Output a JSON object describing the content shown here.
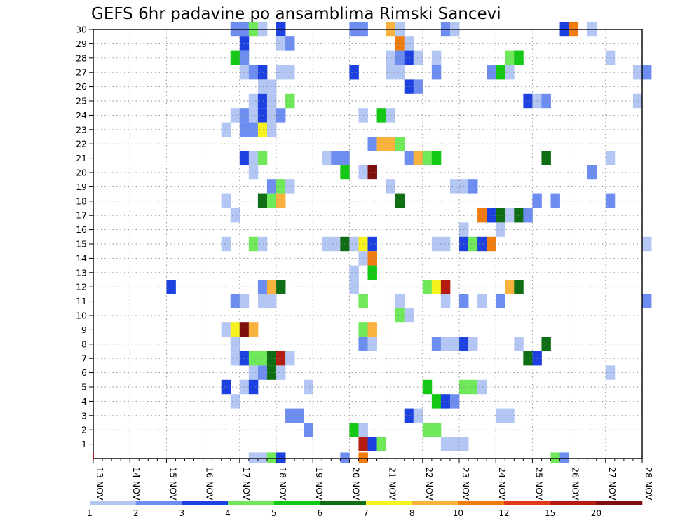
{
  "chart_data": {
    "type": "heatmap",
    "title": "GEFS 6hr padavine po ansamblima Rimski Sancevi",
    "xlabel": "",
    "ylabel": "",
    "x_ticks": [
      "13 NOV",
      "14 NOV",
      "15 NOV",
      "16 NOV",
      "17 NOV",
      "18 NOV",
      "19 NOV",
      "20 NOV",
      "21 NOV",
      "22 NOV",
      "23 NOV",
      "24 NOV",
      "25 NOV",
      "26 NOV",
      "27 NOV",
      "28 NOV"
    ],
    "y_ticks": [
      "1",
      "2",
      "3",
      "4",
      "5",
      "6",
      "7",
      "8",
      "9",
      "10",
      "11",
      "12",
      "13",
      "14",
      "15",
      "16",
      "17",
      "18",
      "19",
      "20",
      "21",
      "22",
      "23",
      "24",
      "25",
      "26",
      "27",
      "28",
      "29",
      "30"
    ],
    "xlim": [
      "13 NOV",
      "28 NOV"
    ],
    "x_step": "6hr",
    "ylim": [
      0,
      30
    ],
    "grid": true,
    "colorbar": {
      "labels": [
        "1",
        "2",
        "3",
        "4",
        "5",
        "6",
        "7",
        "8",
        "10",
        "12",
        "15",
        "20"
      ],
      "colors": [
        "#b4c6f4",
        "#6d8ef0",
        "#1c41e0",
        "#6fe85a",
        "#14c914",
        "#0f6e14",
        "#f5f21e",
        "#f9b23d",
        "#f07c10",
        "#e03a14",
        "#b51c10",
        "#7d0f0f"
      ]
    },
    "cells": [
      {
        "member": 30,
        "day": 16.75,
        "value": 2
      },
      {
        "member": 30,
        "day": 17.0,
        "value": 2
      },
      {
        "member": 30,
        "day": 17.25,
        "value": 4
      },
      {
        "member": 30,
        "day": 17.5,
        "value": 1
      },
      {
        "member": 30,
        "day": 18.0,
        "value": 3
      },
      {
        "member": 30,
        "day": 20.0,
        "value": 2
      },
      {
        "member": 30,
        "day": 20.25,
        "value": 2
      },
      {
        "member": 30,
        "day": 21.0,
        "value": 8
      },
      {
        "member": 30,
        "day": 21.25,
        "value": 1
      },
      {
        "member": 30,
        "day": 22.5,
        "value": 2
      },
      {
        "member": 30,
        "day": 22.75,
        "value": 1
      },
      {
        "member": 30,
        "day": 25.75,
        "value": 3
      },
      {
        "member": 30,
        "day": 26.0,
        "value": 10
      },
      {
        "member": 30,
        "day": 26.5,
        "value": 1
      },
      {
        "member": 29,
        "day": 17.0,
        "value": 3
      },
      {
        "member": 29,
        "day": 18.0,
        "value": 1
      },
      {
        "member": 29,
        "day": 18.25,
        "value": 2
      },
      {
        "member": 29,
        "day": 21.25,
        "value": 10
      },
      {
        "member": 29,
        "day": 21.5,
        "value": 1
      },
      {
        "member": 28,
        "day": 16.75,
        "value": 5
      },
      {
        "member": 28,
        "day": 17.0,
        "value": 2
      },
      {
        "member": 28,
        "day": 21.0,
        "value": 1
      },
      {
        "member": 28,
        "day": 21.25,
        "value": 2
      },
      {
        "member": 28,
        "day": 21.5,
        "value": 3
      },
      {
        "member": 28,
        "day": 21.75,
        "value": 1
      },
      {
        "member": 28,
        "day": 22.25,
        "value": 1
      },
      {
        "member": 28,
        "day": 24.25,
        "value": 4
      },
      {
        "member": 28,
        "day": 24.5,
        "value": 5
      },
      {
        "member": 28,
        "day": 27.0,
        "value": 1
      },
      {
        "member": 27,
        "day": 17.0,
        "value": 1
      },
      {
        "member": 27,
        "day": 17.25,
        "value": 2
      },
      {
        "member": 27,
        "day": 17.5,
        "value": 3
      },
      {
        "member": 27,
        "day": 18.0,
        "value": 1
      },
      {
        "member": 27,
        "day": 18.25,
        "value": 1
      },
      {
        "member": 27,
        "day": 20.0,
        "value": 3
      },
      {
        "member": 27,
        "day": 21.0,
        "value": 1
      },
      {
        "member": 27,
        "day": 21.25,
        "value": 1
      },
      {
        "member": 27,
        "day": 22.25,
        "value": 2
      },
      {
        "member": 27,
        "day": 23.75,
        "value": 2
      },
      {
        "member": 27,
        "day": 24.0,
        "value": 5
      },
      {
        "member": 27,
        "day": 24.25,
        "value": 1
      },
      {
        "member": 27,
        "day": 27.75,
        "value": 1
      },
      {
        "member": 27,
        "day": 28.0,
        "value": 2
      },
      {
        "member": 26,
        "day": 17.5,
        "value": 1
      },
      {
        "member": 26,
        "day": 17.75,
        "value": 1
      },
      {
        "member": 26,
        "day": 21.5,
        "value": 3
      },
      {
        "member": 26,
        "day": 21.75,
        "value": 2
      },
      {
        "member": 25,
        "day": 17.25,
        "value": 1
      },
      {
        "member": 25,
        "day": 17.5,
        "value": 3
      },
      {
        "member": 25,
        "day": 17.75,
        "value": 1
      },
      {
        "member": 25,
        "day": 18.25,
        "value": 4
      },
      {
        "member": 25,
        "day": 24.75,
        "value": 3
      },
      {
        "member": 25,
        "day": 25.0,
        "value": 1
      },
      {
        "member": 25,
        "day": 25.25,
        "value": 2
      },
      {
        "member": 25,
        "day": 27.75,
        "value": 1
      },
      {
        "member": 24,
        "day": 16.75,
        "value": 1
      },
      {
        "member": 24,
        "day": 17.0,
        "value": 2
      },
      {
        "member": 24,
        "day": 17.25,
        "value": 1
      },
      {
        "member": 24,
        "day": 17.5,
        "value": 3
      },
      {
        "member": 24,
        "day": 17.75,
        "value": 1
      },
      {
        "member": 24,
        "day": 18.0,
        "value": 2
      },
      {
        "member": 24,
        "day": 20.25,
        "value": 1
      },
      {
        "member": 24,
        "day": 20.75,
        "value": 5
      },
      {
        "member": 24,
        "day": 21.0,
        "value": 1
      },
      {
        "member": 23,
        "day": 16.5,
        "value": 1
      },
      {
        "member": 23,
        "day": 17.0,
        "value": 2
      },
      {
        "member": 23,
        "day": 17.25,
        "value": 2
      },
      {
        "member": 23,
        "day": 17.5,
        "value": 7
      },
      {
        "member": 23,
        "day": 17.75,
        "value": 1
      },
      {
        "member": 22,
        "day": 20.5,
        "value": 2
      },
      {
        "member": 22,
        "day": 20.75,
        "value": 8
      },
      {
        "member": 22,
        "day": 21.0,
        "value": 8
      },
      {
        "member": 22,
        "day": 21.25,
        "value": 4
      },
      {
        "member": 21,
        "day": 17.0,
        "value": 3
      },
      {
        "member": 21,
        "day": 17.25,
        "value": 1
      },
      {
        "member": 21,
        "day": 17.5,
        "value": 4
      },
      {
        "member": 21,
        "day": 19.25,
        "value": 1
      },
      {
        "member": 21,
        "day": 19.5,
        "value": 2
      },
      {
        "member": 21,
        "day": 19.75,
        "value": 2
      },
      {
        "member": 21,
        "day": 21.5,
        "value": 2
      },
      {
        "member": 21,
        "day": 21.75,
        "value": 8
      },
      {
        "member": 21,
        "day": 22.0,
        "value": 4
      },
      {
        "member": 21,
        "day": 22.25,
        "value": 5
      },
      {
        "member": 21,
        "day": 25.25,
        "value": 6
      },
      {
        "member": 21,
        "day": 27.0,
        "value": 1
      },
      {
        "member": 20,
        "day": 17.25,
        "value": 1
      },
      {
        "member": 20,
        "day": 19.75,
        "value": 5
      },
      {
        "member": 20,
        "day": 20.25,
        "value": 1
      },
      {
        "member": 20,
        "day": 20.5,
        "value": 20
      },
      {
        "member": 20,
        "day": 26.5,
        "value": 2
      },
      {
        "member": 19,
        "day": 17.75,
        "value": 2
      },
      {
        "member": 19,
        "day": 18.0,
        "value": 4
      },
      {
        "member": 19,
        "day": 18.25,
        "value": 1
      },
      {
        "member": 19,
        "day": 21.0,
        "value": 1
      },
      {
        "member": 19,
        "day": 22.75,
        "value": 1
      },
      {
        "member": 19,
        "day": 23.0,
        "value": 1
      },
      {
        "member": 19,
        "day": 23.25,
        "value": 2
      },
      {
        "member": 18,
        "day": 16.5,
        "value": 1
      },
      {
        "member": 18,
        "day": 17.5,
        "value": 6
      },
      {
        "member": 18,
        "day": 17.75,
        "value": 4
      },
      {
        "member": 18,
        "day": 18.0,
        "value": 8
      },
      {
        "member": 18,
        "day": 21.25,
        "value": 6
      },
      {
        "member": 18,
        "day": 25.0,
        "value": 2
      },
      {
        "member": 18,
        "day": 25.5,
        "value": 2
      },
      {
        "member": 18,
        "day": 27.0,
        "value": 2
      },
      {
        "member": 17,
        "day": 16.75,
        "value": 1
      },
      {
        "member": 17,
        "day": 23.5,
        "value": 10
      },
      {
        "member": 17,
        "day": 23.75,
        "value": 3
      },
      {
        "member": 17,
        "day": 24.0,
        "value": 6
      },
      {
        "member": 17,
        "day": 24.25,
        "value": 1
      },
      {
        "member": 17,
        "day": 24.5,
        "value": 6
      },
      {
        "member": 17,
        "day": 24.75,
        "value": 2
      },
      {
        "member": 16,
        "day": 23.0,
        "value": 1
      },
      {
        "member": 16,
        "day": 24.0,
        "value": 1
      },
      {
        "member": 15,
        "day": 16.5,
        "value": 1
      },
      {
        "member": 15,
        "day": 17.25,
        "value": 4
      },
      {
        "member": 15,
        "day": 17.5,
        "value": 1
      },
      {
        "member": 15,
        "day": 19.25,
        "value": 1
      },
      {
        "member": 15,
        "day": 19.5,
        "value": 1
      },
      {
        "member": 15,
        "day": 19.75,
        "value": 6
      },
      {
        "member": 15,
        "day": 20.0,
        "value": 1
      },
      {
        "member": 15,
        "day": 20.25,
        "value": 7
      },
      {
        "member": 15,
        "day": 20.5,
        "value": 3
      },
      {
        "member": 15,
        "day": 22.25,
        "value": 1
      },
      {
        "member": 15,
        "day": 22.5,
        "value": 1
      },
      {
        "member": 15,
        "day": 23.0,
        "value": 3
      },
      {
        "member": 15,
        "day": 23.25,
        "value": 4
      },
      {
        "member": 15,
        "day": 23.5,
        "value": 3
      },
      {
        "member": 15,
        "day": 23.75,
        "value": 10
      },
      {
        "member": 15,
        "day": 28.0,
        "value": 1
      },
      {
        "member": 14,
        "day": 20.25,
        "value": 1
      },
      {
        "member": 14,
        "day": 20.5,
        "value": 10
      },
      {
        "member": 13,
        "day": 20.0,
        "value": 1
      },
      {
        "member": 13,
        "day": 20.5,
        "value": 5
      },
      {
        "member": 12,
        "day": 15.0,
        "value": 3
      },
      {
        "member": 12,
        "day": 17.5,
        "value": 2
      },
      {
        "member": 12,
        "day": 17.75,
        "value": 8
      },
      {
        "member": 12,
        "day": 18.0,
        "value": 6
      },
      {
        "member": 12,
        "day": 20.0,
        "value": 1
      },
      {
        "member": 12,
        "day": 22.0,
        "value": 4
      },
      {
        "member": 12,
        "day": 22.25,
        "value": 7
      },
      {
        "member": 12,
        "day": 22.5,
        "value": 15
      },
      {
        "member": 12,
        "day": 24.25,
        "value": 8
      },
      {
        "member": 12,
        "day": 24.5,
        "value": 6
      },
      {
        "member": 11,
        "day": 16.75,
        "value": 2
      },
      {
        "member": 11,
        "day": 17.0,
        "value": 1
      },
      {
        "member": 11,
        "day": 17.5,
        "value": 1
      },
      {
        "member": 11,
        "day": 17.75,
        "value": 1
      },
      {
        "member": 11,
        "day": 20.25,
        "value": 4
      },
      {
        "member": 11,
        "day": 21.25,
        "value": 1
      },
      {
        "member": 11,
        "day": 22.5,
        "value": 1
      },
      {
        "member": 11,
        "day": 23.0,
        "value": 2
      },
      {
        "member": 11,
        "day": 23.5,
        "value": 1
      },
      {
        "member": 11,
        "day": 24.0,
        "value": 2
      },
      {
        "member": 11,
        "day": 28.0,
        "value": 2
      },
      {
        "member": 10,
        "day": 21.25,
        "value": 4
      },
      {
        "member": 10,
        "day": 21.5,
        "value": 1
      },
      {
        "member": 9,
        "day": 16.5,
        "value": 1
      },
      {
        "member": 9,
        "day": 16.75,
        "value": 7
      },
      {
        "member": 9,
        "day": 17.0,
        "value": 20
      },
      {
        "member": 9,
        "day": 17.25,
        "value": 8
      },
      {
        "member": 9,
        "day": 20.25,
        "value": 4
      },
      {
        "member": 9,
        "day": 20.5,
        "value": 8
      },
      {
        "member": 8,
        "day": 16.75,
        "value": 1
      },
      {
        "member": 8,
        "day": 20.25,
        "value": 2
      },
      {
        "member": 8,
        "day": 20.5,
        "value": 1
      },
      {
        "member": 8,
        "day": 22.25,
        "value": 2
      },
      {
        "member": 8,
        "day": 22.5,
        "value": 1
      },
      {
        "member": 8,
        "day": 22.75,
        "value": 1
      },
      {
        "member": 8,
        "day": 23.0,
        "value": 3
      },
      {
        "member": 8,
        "day": 23.25,
        "value": 1
      },
      {
        "member": 8,
        "day": 24.5,
        "value": 1
      },
      {
        "member": 8,
        "day": 25.25,
        "value": 6
      },
      {
        "member": 7,
        "day": 16.75,
        "value": 1
      },
      {
        "member": 7,
        "day": 17.0,
        "value": 3
      },
      {
        "member": 7,
        "day": 17.25,
        "value": 4
      },
      {
        "member": 7,
        "day": 17.5,
        "value": 4
      },
      {
        "member": 7,
        "day": 17.75,
        "value": 6
      },
      {
        "member": 7,
        "day": 18.0,
        "value": 15
      },
      {
        "member": 7,
        "day": 18.25,
        "value": 1
      },
      {
        "member": 7,
        "day": 24.75,
        "value": 6
      },
      {
        "member": 7,
        "day": 25.0,
        "value": 3
      },
      {
        "member": 6,
        "day": 17.25,
        "value": 1
      },
      {
        "member": 6,
        "day": 17.5,
        "value": 2
      },
      {
        "member": 6,
        "day": 17.75,
        "value": 6
      },
      {
        "member": 6,
        "day": 18.0,
        "value": 1
      },
      {
        "member": 6,
        "day": 27.0,
        "value": 1
      },
      {
        "member": 5,
        "day": 16.5,
        "value": 3
      },
      {
        "member": 5,
        "day": 17.0,
        "value": 1
      },
      {
        "member": 5,
        "day": 17.25,
        "value": 3
      },
      {
        "member": 5,
        "day": 18.75,
        "value": 1
      },
      {
        "member": 5,
        "day": 22.0,
        "value": 5
      },
      {
        "member": 5,
        "day": 23.0,
        "value": 4
      },
      {
        "member": 5,
        "day": 23.25,
        "value": 4
      },
      {
        "member": 5,
        "day": 23.5,
        "value": 1
      },
      {
        "member": 4,
        "day": 16.75,
        "value": 1
      },
      {
        "member": 4,
        "day": 22.25,
        "value": 5
      },
      {
        "member": 4,
        "day": 22.5,
        "value": 3
      },
      {
        "member": 4,
        "day": 22.75,
        "value": 2
      },
      {
        "member": 3,
        "day": 18.25,
        "value": 2
      },
      {
        "member": 3,
        "day": 18.5,
        "value": 2
      },
      {
        "member": 3,
        "day": 21.5,
        "value": 3
      },
      {
        "member": 3,
        "day": 21.75,
        "value": 1
      },
      {
        "member": 3,
        "day": 24.0,
        "value": 1
      },
      {
        "member": 3,
        "day": 24.25,
        "value": 1
      },
      {
        "member": 2,
        "day": 18.75,
        "value": 2
      },
      {
        "member": 2,
        "day": 20.0,
        "value": 5
      },
      {
        "member": 2,
        "day": 20.25,
        "value": 1
      },
      {
        "member": 2,
        "day": 22.0,
        "value": 4
      },
      {
        "member": 2,
        "day": 22.25,
        "value": 4
      },
      {
        "member": 1,
        "day": 20.25,
        "value": 15
      },
      {
        "member": 1,
        "day": 20.5,
        "value": 3
      },
      {
        "member": 1,
        "day": 20.75,
        "value": 4
      },
      {
        "member": 1,
        "day": 22.5,
        "value": 1
      },
      {
        "member": 1,
        "day": 22.75,
        "value": 1
      },
      {
        "member": 1,
        "day": 23.0,
        "value": 1
      },
      {
        "member": 0,
        "day": 17.25,
        "value": 1
      },
      {
        "member": 0,
        "day": 17.5,
        "value": 1
      },
      {
        "member": 0,
        "day": 17.75,
        "value": 4
      },
      {
        "member": 0,
        "day": 18.0,
        "value": 3
      },
      {
        "member": 0,
        "day": 19.75,
        "value": 2
      },
      {
        "member": 0,
        "day": 20.25,
        "value": 10
      },
      {
        "member": 0,
        "day": 25.5,
        "value": 4
      },
      {
        "member": 0,
        "day": 25.75,
        "value": 2
      }
    ]
  }
}
